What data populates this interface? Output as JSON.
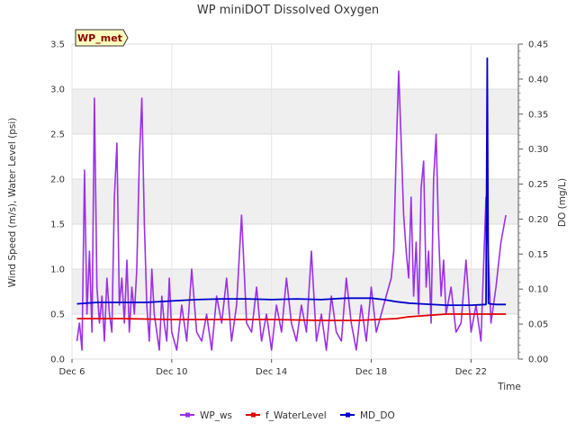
{
  "chart_data": {
    "type": "line",
    "title": "WP miniDOT Dissolved Oxygen",
    "badge": "WP_met",
    "xlabel": "Time",
    "ylabel": "Wind Speed (m/s), Water Level (psi)",
    "y2label": "DO (mg/L)",
    "xlim": [
      6.0,
      23.9
    ],
    "ylim": [
      0,
      3.5
    ],
    "y2lim": [
      0,
      0.45
    ],
    "x_ticks": [
      6,
      10,
      14,
      18,
      22
    ],
    "x_tick_labels": [
      "Dec 6",
      "Dec 10",
      "Dec 14",
      "Dec 18",
      "Dec 22"
    ],
    "y_ticks": [
      "0.0",
      "0.5",
      "1.0",
      "1.5",
      "2.0",
      "2.5",
      "3.0",
      "3.5"
    ],
    "y2_ticks": [
      "0.00",
      "0.05",
      "0.10",
      "0.15",
      "0.20",
      "0.25",
      "0.30",
      "0.35",
      "0.40",
      "0.45"
    ],
    "grid": true,
    "banded_background": true,
    "legend_position": "bottom",
    "series": [
      {
        "name": "WP_ws",
        "axis": "left",
        "color": "#9b30e8",
        "x": [
          6.2,
          6.3,
          6.4,
          6.5,
          6.6,
          6.7,
          6.8,
          6.9,
          7.0,
          7.1,
          7.2,
          7.3,
          7.4,
          7.5,
          7.6,
          7.7,
          7.8,
          7.9,
          8.0,
          8.1,
          8.2,
          8.3,
          8.4,
          8.5,
          8.6,
          8.7,
          8.8,
          8.9,
          9.0,
          9.1,
          9.2,
          9.3,
          9.4,
          9.5,
          9.6,
          9.7,
          9.8,
          9.9,
          10.0,
          10.2,
          10.4,
          10.6,
          10.8,
          11.0,
          11.2,
          11.4,
          11.6,
          11.8,
          12.0,
          12.2,
          12.4,
          12.6,
          12.8,
          13.0,
          13.2,
          13.4,
          13.6,
          13.8,
          14.0,
          14.2,
          14.4,
          14.6,
          14.8,
          15.0,
          15.2,
          15.4,
          15.6,
          15.8,
          16.0,
          16.2,
          16.4,
          16.6,
          16.8,
          17.0,
          17.2,
          17.4,
          17.6,
          17.8,
          18.0,
          18.2,
          18.4,
          18.6,
          18.8,
          18.9,
          19.0,
          19.1,
          19.2,
          19.3,
          19.4,
          19.5,
          19.6,
          19.7,
          19.8,
          19.9,
          20.0,
          20.1,
          20.2,
          20.3,
          20.4,
          20.5,
          20.6,
          20.7,
          20.8,
          20.9,
          21.0,
          21.2,
          21.4,
          21.6,
          21.8,
          22.0,
          22.2,
          22.4,
          22.6,
          22.8,
          23.0,
          23.2,
          23.4
        ],
        "values": [
          0.2,
          0.4,
          0.1,
          2.1,
          0.5,
          1.2,
          0.3,
          2.9,
          0.8,
          0.4,
          0.7,
          0.2,
          0.9,
          0.5,
          0.3,
          1.8,
          2.4,
          0.6,
          0.9,
          0.4,
          1.1,
          0.3,
          0.8,
          0.5,
          1.0,
          2.2,
          2.9,
          1.5,
          0.6,
          0.2,
          1.0,
          0.5,
          0.3,
          0.1,
          0.7,
          0.4,
          0.2,
          0.9,
          0.3,
          0.1,
          0.6,
          0.2,
          1.0,
          0.3,
          0.2,
          0.5,
          0.1,
          0.7,
          0.4,
          0.9,
          0.2,
          0.6,
          1.6,
          0.4,
          0.3,
          0.8,
          0.2,
          0.5,
          0.1,
          0.6,
          0.3,
          0.9,
          0.4,
          0.2,
          0.6,
          0.3,
          1.2,
          0.2,
          0.5,
          0.1,
          0.7,
          0.3,
          0.2,
          0.9,
          0.4,
          0.1,
          0.6,
          0.2,
          0.8,
          0.3,
          0.5,
          0.7,
          0.9,
          1.2,
          2.3,
          3.2,
          2.4,
          1.6,
          1.2,
          0.9,
          1.8,
          0.7,
          1.3,
          0.5,
          1.9,
          2.2,
          0.8,
          1.2,
          0.4,
          2.0,
          2.5,
          1.4,
          0.7,
          1.1,
          0.5,
          0.8,
          0.3,
          0.4,
          1.1,
          0.3,
          0.6,
          0.2,
          1.8,
          0.4,
          0.8,
          1.3,
          1.6
        ],
        "values_tail": []
      },
      {
        "name": "f_WaterLevel",
        "axis": "left",
        "color": "#e00000",
        "x": [
          6.2,
          8.0,
          10.0,
          12.0,
          14.0,
          16.0,
          17.5,
          18.2,
          19.0,
          19.5,
          20.0,
          20.5,
          21.0,
          22.0,
          23.0,
          23.4
        ],
        "values": [
          0.45,
          0.45,
          0.44,
          0.44,
          0.44,
          0.43,
          0.43,
          0.44,
          0.45,
          0.47,
          0.48,
          0.49,
          0.5,
          0.5,
          0.5,
          0.5
        ]
      },
      {
        "name": "MD_DO",
        "axis": "right",
        "color": "#0000cc",
        "x": [
          6.2,
          7.0,
          8.0,
          9.0,
          10.0,
          11.0,
          12.0,
          13.0,
          14.0,
          15.0,
          16.0,
          17.0,
          18.0,
          18.5,
          19.0,
          19.5,
          20.0,
          21.0,
          22.0,
          22.6,
          22.65,
          22.7,
          22.75,
          23.0,
          23.4
        ],
        "values": [
          0.079,
          0.081,
          0.081,
          0.081,
          0.083,
          0.085,
          0.086,
          0.086,
          0.085,
          0.086,
          0.085,
          0.087,
          0.087,
          0.085,
          0.082,
          0.08,
          0.079,
          0.077,
          0.077,
          0.078,
          0.43,
          0.08,
          0.079,
          0.078,
          0.078
        ]
      }
    ]
  }
}
